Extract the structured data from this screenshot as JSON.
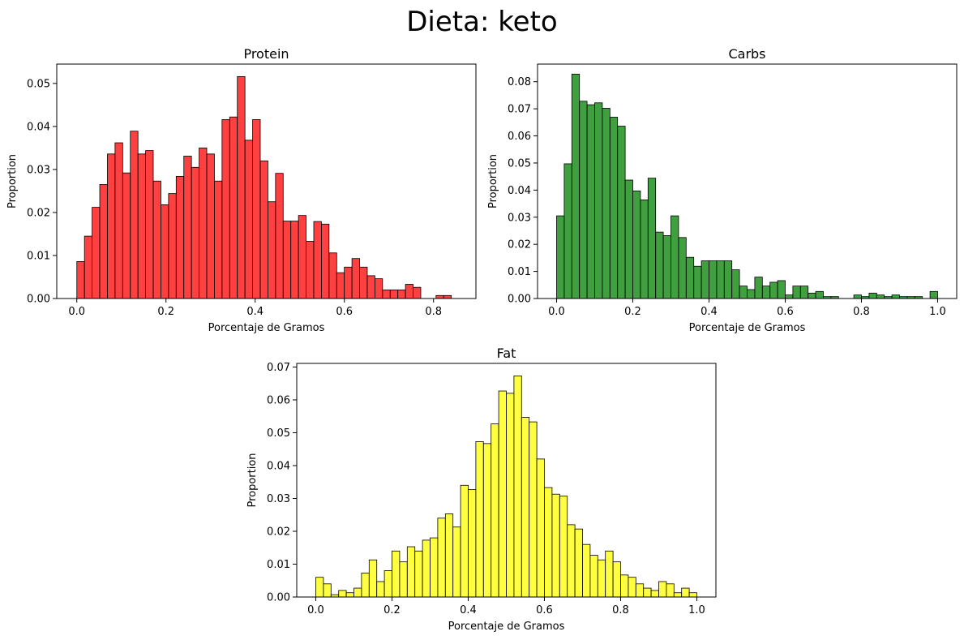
{
  "figure": {
    "suptitle": "Dieta: keto"
  },
  "chart_data": [
    {
      "type": "bar",
      "title": "Protein",
      "xlabel": "Porcentaje de Gramos",
      "ylabel": "Proportion",
      "color": "#ff0000",
      "xlim": [
        -0.045,
        0.895
      ],
      "ylim": [
        0,
        0.0545
      ],
      "xticks": [
        0.0,
        0.2,
        0.4,
        0.6,
        0.8
      ],
      "xtick_labels": [
        "0.0",
        "0.2",
        "0.4",
        "0.6",
        "0.8"
      ],
      "yticks": [
        0.0,
        0.01,
        0.02,
        0.03,
        0.04,
        0.05
      ],
      "ytick_labels": [
        "0.00",
        "0.01",
        "0.02",
        "0.03",
        "0.04",
        "0.05"
      ],
      "bin_start": 0.0,
      "bin_width": 0.01714,
      "values": [
        0.0086,
        0.0145,
        0.0212,
        0.0265,
        0.0336,
        0.0362,
        0.0292,
        0.0389,
        0.0336,
        0.0344,
        0.0273,
        0.0218,
        0.0244,
        0.0284,
        0.0331,
        0.0305,
        0.035,
        0.0336,
        0.0273,
        0.0416,
        0.0422,
        0.0516,
        0.0368,
        0.0416,
        0.032,
        0.0225,
        0.0291,
        0.018,
        0.018,
        0.0193,
        0.0133,
        0.0179,
        0.0173,
        0.0106,
        0.006,
        0.0073,
        0.0093,
        0.0073,
        0.0053,
        0.0046,
        0.002,
        0.002,
        0.002,
        0.0033,
        0.0026,
        0.0,
        0.0,
        0.0007,
        0.0007,
        0.0
      ]
    },
    {
      "type": "bar",
      "title": "Carbs",
      "xlabel": "Porcentaje de Gramos",
      "ylabel": "Proportion",
      "color": "#008000",
      "xlim": [
        -0.05,
        1.05
      ],
      "ylim": [
        0,
        0.0865
      ],
      "xticks": [
        0.0,
        0.2,
        0.4,
        0.6,
        0.8,
        1.0
      ],
      "xtick_labels": [
        "0.0",
        "0.2",
        "0.4",
        "0.6",
        "0.8",
        "1.0"
      ],
      "yticks": [
        0.0,
        0.01,
        0.02,
        0.03,
        0.04,
        0.05,
        0.06,
        0.07,
        0.08
      ],
      "ytick_labels": [
        "0.00",
        "0.01",
        "0.02",
        "0.03",
        "0.04",
        "0.05",
        "0.06",
        "0.07",
        "0.08"
      ],
      "bin_start": 0.0,
      "bin_width": 0.02,
      "values": [
        0.0305,
        0.0497,
        0.0828,
        0.0728,
        0.0715,
        0.0722,
        0.0702,
        0.0669,
        0.0636,
        0.0437,
        0.0397,
        0.0364,
        0.0444,
        0.0245,
        0.0232,
        0.0305,
        0.0225,
        0.0152,
        0.0119,
        0.0139,
        0.0139,
        0.0139,
        0.0139,
        0.0106,
        0.0046,
        0.0033,
        0.0079,
        0.0046,
        0.006,
        0.0066,
        0.0013,
        0.0046,
        0.0046,
        0.002,
        0.0026,
        0.0007,
        0.0007,
        0.0,
        0.0,
        0.0013,
        0.0007,
        0.002,
        0.0013,
        0.0007,
        0.0013,
        0.0007,
        0.0007,
        0.0007,
        0.0,
        0.0026
      ]
    },
    {
      "type": "bar",
      "title": "Fat",
      "xlabel": "Porcentaje de Gramos",
      "ylabel": "Proportion",
      "color": "#ffff00",
      "xlim": [
        -0.05,
        1.05
      ],
      "ylim": [
        0,
        0.0711
      ],
      "xticks": [
        0.0,
        0.2,
        0.4,
        0.6,
        0.8,
        1.0
      ],
      "xtick_labels": [
        "0.0",
        "0.2",
        "0.4",
        "0.6",
        "0.8",
        "1.0"
      ],
      "yticks": [
        0.0,
        0.01,
        0.02,
        0.03,
        0.04,
        0.05,
        0.06,
        0.07
      ],
      "ytick_labels": [
        "0.000",
        "0.010",
        "0.020",
        "0.030",
        "0.040",
        "0.050",
        "0.060",
        "0.070"
      ],
      "ytick_labels_shown": [
        "0.00",
        "0.01",
        "0.02",
        "0.03",
        "0.04",
        "0.05",
        "0.06",
        "0.07"
      ],
      "bin_start": 0.0,
      "bin_width": 0.02,
      "values": [
        0.006,
        0.004,
        0.0007,
        0.002,
        0.0013,
        0.0027,
        0.0073,
        0.0113,
        0.0047,
        0.008,
        0.014,
        0.0107,
        0.0153,
        0.014,
        0.0173,
        0.018,
        0.024,
        0.0253,
        0.0213,
        0.034,
        0.0327,
        0.0473,
        0.0467,
        0.0527,
        0.0627,
        0.062,
        0.0673,
        0.0547,
        0.0533,
        0.042,
        0.0333,
        0.0313,
        0.0307,
        0.022,
        0.0207,
        0.016,
        0.0127,
        0.0113,
        0.014,
        0.0107,
        0.0067,
        0.006,
        0.004,
        0.0027,
        0.002,
        0.0047,
        0.004,
        0.0013,
        0.0027,
        0.0013
      ]
    }
  ]
}
